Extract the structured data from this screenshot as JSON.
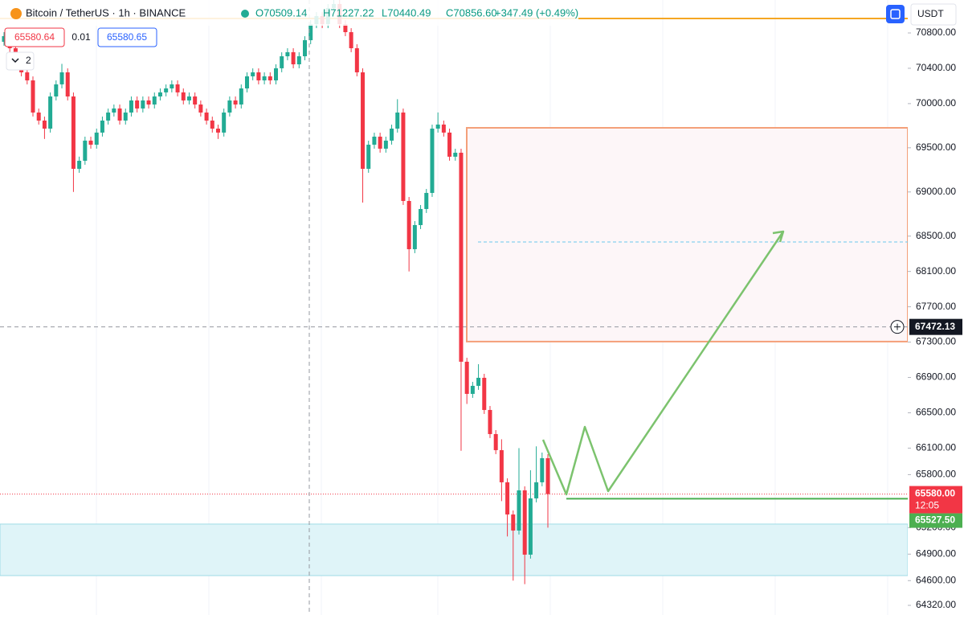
{
  "chart_data": {
    "type": "candlestick",
    "title": "Bitcoin / TetherUS · 1h · BINANCE",
    "ohlc_legend": [
      "O70509.14",
      "H71227.22",
      "L70440.49",
      "C70856.60",
      "+347.49 (+0.49%)"
    ],
    "up_color": "#22ab94",
    "down_color": "#f23645",
    "open": [
      70700,
      70764,
      70627,
      70490,
      70354,
      70263,
      69899,
      69808,
      69717,
      70081,
      70218,
      70354,
      70081,
      69262,
      69353,
      69581,
      69535,
      69672,
      69808,
      69899,
      69945,
      69808,
      69899,
      70036,
      69945,
      70036,
      69990,
      70081,
      70127,
      70172,
      70218,
      70127,
      70036,
      70081,
      69990,
      69899,
      69808,
      69717,
      69672,
      69899,
      70036,
      69990,
      70172,
      70309,
      70354,
      70263,
      70309,
      70263,
      70400,
      70536,
      70582,
      70445,
      70536,
      70718,
      70900,
      70991,
      70900,
      71082,
      71128,
      70900,
      70809,
      70627,
      70354,
      69262,
      69535,
      69626,
      69490,
      69581,
      69717,
      69899,
      68898,
      68352,
      68625,
      68807,
      68989,
      69717,
      69763,
      69672,
      69399,
      69444,
      67078,
      66714,
      66805,
      66896,
      66532,
      66259,
      66077,
      65713,
      65349,
      65167,
      65622,
      64894,
      65531,
      65713,
      65986
    ],
    "high": [
      70809,
      70809,
      70672,
      70535,
      70399,
      70308,
      69944,
      69853,
      70126,
      70263,
      70450,
      70399,
      70126,
      69400,
      69626,
      69626,
      69717,
      69853,
      69944,
      69990,
      69990,
      69944,
      70081,
      70081,
      70081,
      70081,
      70126,
      70172,
      70217,
      70263,
      70263,
      70172,
      70126,
      70126,
      70035,
      69944,
      69853,
      69762,
      69944,
      70081,
      70081,
      70217,
      70354,
      70399,
      70399,
      70354,
      70354,
      70445,
      70581,
      70627,
      70627,
      70581,
      70763,
      70945,
      71036,
      71036,
      71127,
      71227,
      71173,
      70945,
      70854,
      70672,
      70399,
      69580,
      69671,
      69671,
      69626,
      69762,
      70050,
      69944,
      68943,
      68670,
      68852,
      69034,
      69762,
      69900,
      69808,
      69717,
      69489,
      69489,
      67123,
      66850,
      67050,
      66941,
      66577,
      66304,
      66200,
      65758,
      65394,
      66100,
      65667,
      65850,
      66120,
      66050,
      66031
    ],
    "low": [
      70655,
      70582,
      70445,
      70309,
      70218,
      69854,
      69763,
      69600,
      69672,
      70036,
      70173,
      70036,
      69000,
      69217,
      69308,
      69490,
      69490,
      69627,
      69763,
      69854,
      69763,
      69763,
      69854,
      69900,
      69900,
      69945,
      69945,
      70036,
      70082,
      70127,
      70082,
      69991,
      69991,
      69945,
      69854,
      69763,
      69672,
      69600,
      69627,
      69854,
      69945,
      69945,
      70127,
      70264,
      70218,
      70218,
      70218,
      70218,
      70355,
      70491,
      70400,
      70400,
      70491,
      70673,
      70855,
      70855,
      70855,
      71037,
      70855,
      70764,
      70582,
      70309,
      68880,
      69217,
      69490,
      69445,
      69445,
      69536,
      69672,
      68853,
      68100,
      68307,
      68580,
      68762,
      68944,
      69672,
      69627,
      69354,
      69354,
      66070,
      66600,
      66669,
      66760,
      66487,
      66214,
      66032,
      65500,
      65100,
      64600,
      65122,
      64560,
      64849,
      65486,
      65668,
      65200
    ],
    "close": [
      70764,
      70627,
      70490,
      70354,
      70263,
      69899,
      69808,
      69717,
      70081,
      70218,
      70354,
      70081,
      69262,
      69353,
      69581,
      69535,
      69672,
      69808,
      69899,
      69945,
      69808,
      69899,
      70036,
      69945,
      70036,
      69990,
      70081,
      70127,
      70172,
      70218,
      70127,
      70036,
      70081,
      69990,
      69899,
      69808,
      69717,
      69672,
      69899,
      70036,
      69990,
      70172,
      70309,
      70354,
      70263,
      70309,
      70263,
      70400,
      70536,
      70582,
      70445,
      70536,
      70718,
      70900,
      70991,
      70900,
      71082,
      71128,
      70900,
      70809,
      70627,
      70354,
      69262,
      69535,
      69626,
      69490,
      69581,
      69717,
      69899,
      68898,
      68352,
      68625,
      68807,
      68989,
      69717,
      69763,
      69672,
      69399,
      69444,
      67078,
      66714,
      66805,
      66896,
      66532,
      66259,
      66077,
      65713,
      65349,
      65167,
      65622,
      64894,
      65531,
      65713,
      65986,
      65580
    ],
    "ylim": [
      64211,
      71173
    ],
    "yticks": [
      {
        "value": 70800,
        "label": "70800.00"
      },
      {
        "value": 70400,
        "label": "70400.00"
      },
      {
        "value": 70000,
        "label": "70000.00"
      },
      {
        "value": 69500,
        "label": "69500.00"
      },
      {
        "value": 69000,
        "label": "69000.00"
      },
      {
        "value": 68500,
        "label": "68500.00"
      },
      {
        "value": 68100,
        "label": "68100.00"
      },
      {
        "value": 67700,
        "label": "67700.00"
      },
      {
        "value": 67300,
        "label": "67300.00"
      },
      {
        "value": 66900,
        "label": "66900.00"
      },
      {
        "value": 66500,
        "label": "66500.00"
      },
      {
        "value": 66100,
        "label": "66100.00"
      },
      {
        "value": 65800,
        "label": "65800.00"
      },
      {
        "value": 65200,
        "label": "65200.00"
      },
      {
        "value": 64900,
        "label": "64900.00"
      },
      {
        "value": 64600,
        "label": "64600.00"
      },
      {
        "value": 64320,
        "label": "64320.00"
      }
    ],
    "crosshair": {
      "value": 67472.13,
      "label": "67472.13"
    },
    "last_price": {
      "value": 65580.0,
      "label": "65580.00"
    },
    "countdown": "12:05",
    "target_line": {
      "value": 65527.5,
      "label": "65527.50"
    },
    "resistance_line": 70964,
    "box": {
      "top": 69726,
      "bottom": 67306,
      "mid": 68434
    },
    "support_zone": {
      "top": 65240,
      "bottom": 64657
    }
  },
  "toolbar": {
    "sell": "65580.64",
    "size": "0.01",
    "buy": "65580.65",
    "indicators": "2",
    "currency": "USDT"
  }
}
